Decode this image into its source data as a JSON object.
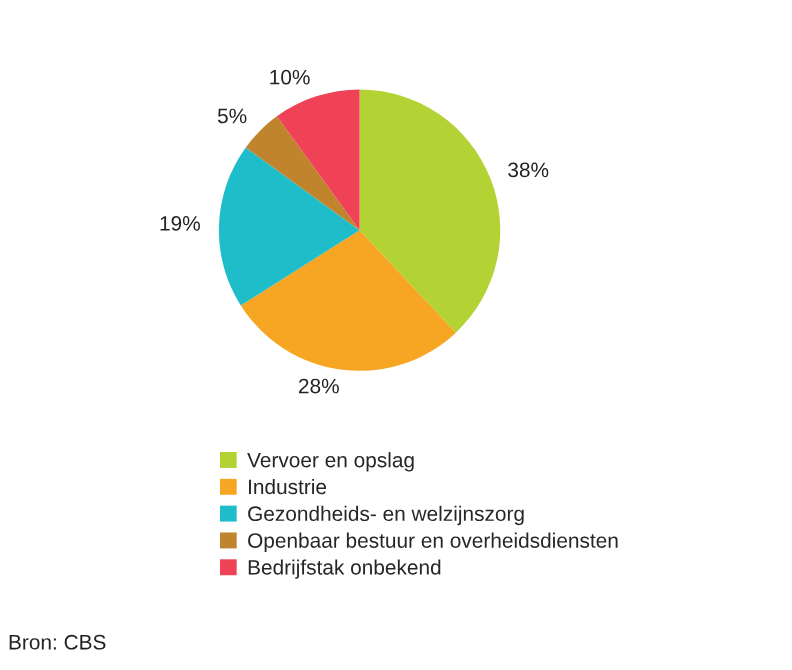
{
  "chart_data": {
    "type": "pie",
    "categories": [
      "Vervoer en opslag",
      "Industrie",
      "Gezondheids- en welzijnszorg",
      "Openbaar bestuur en overheidsdiensten",
      "Bedrijfstak onbekend"
    ],
    "values": [
      38,
      28,
      19,
      5,
      10
    ],
    "colors": [
      "#b3d335",
      "#f6a623",
      "#1fbdc9",
      "#c0842c",
      "#ef4256"
    ],
    "value_labels": [
      "38%",
      "28%",
      "19%",
      "5%",
      "10%"
    ],
    "legend": "bottom",
    "annotations": [
      "Bron: CBS"
    ]
  }
}
